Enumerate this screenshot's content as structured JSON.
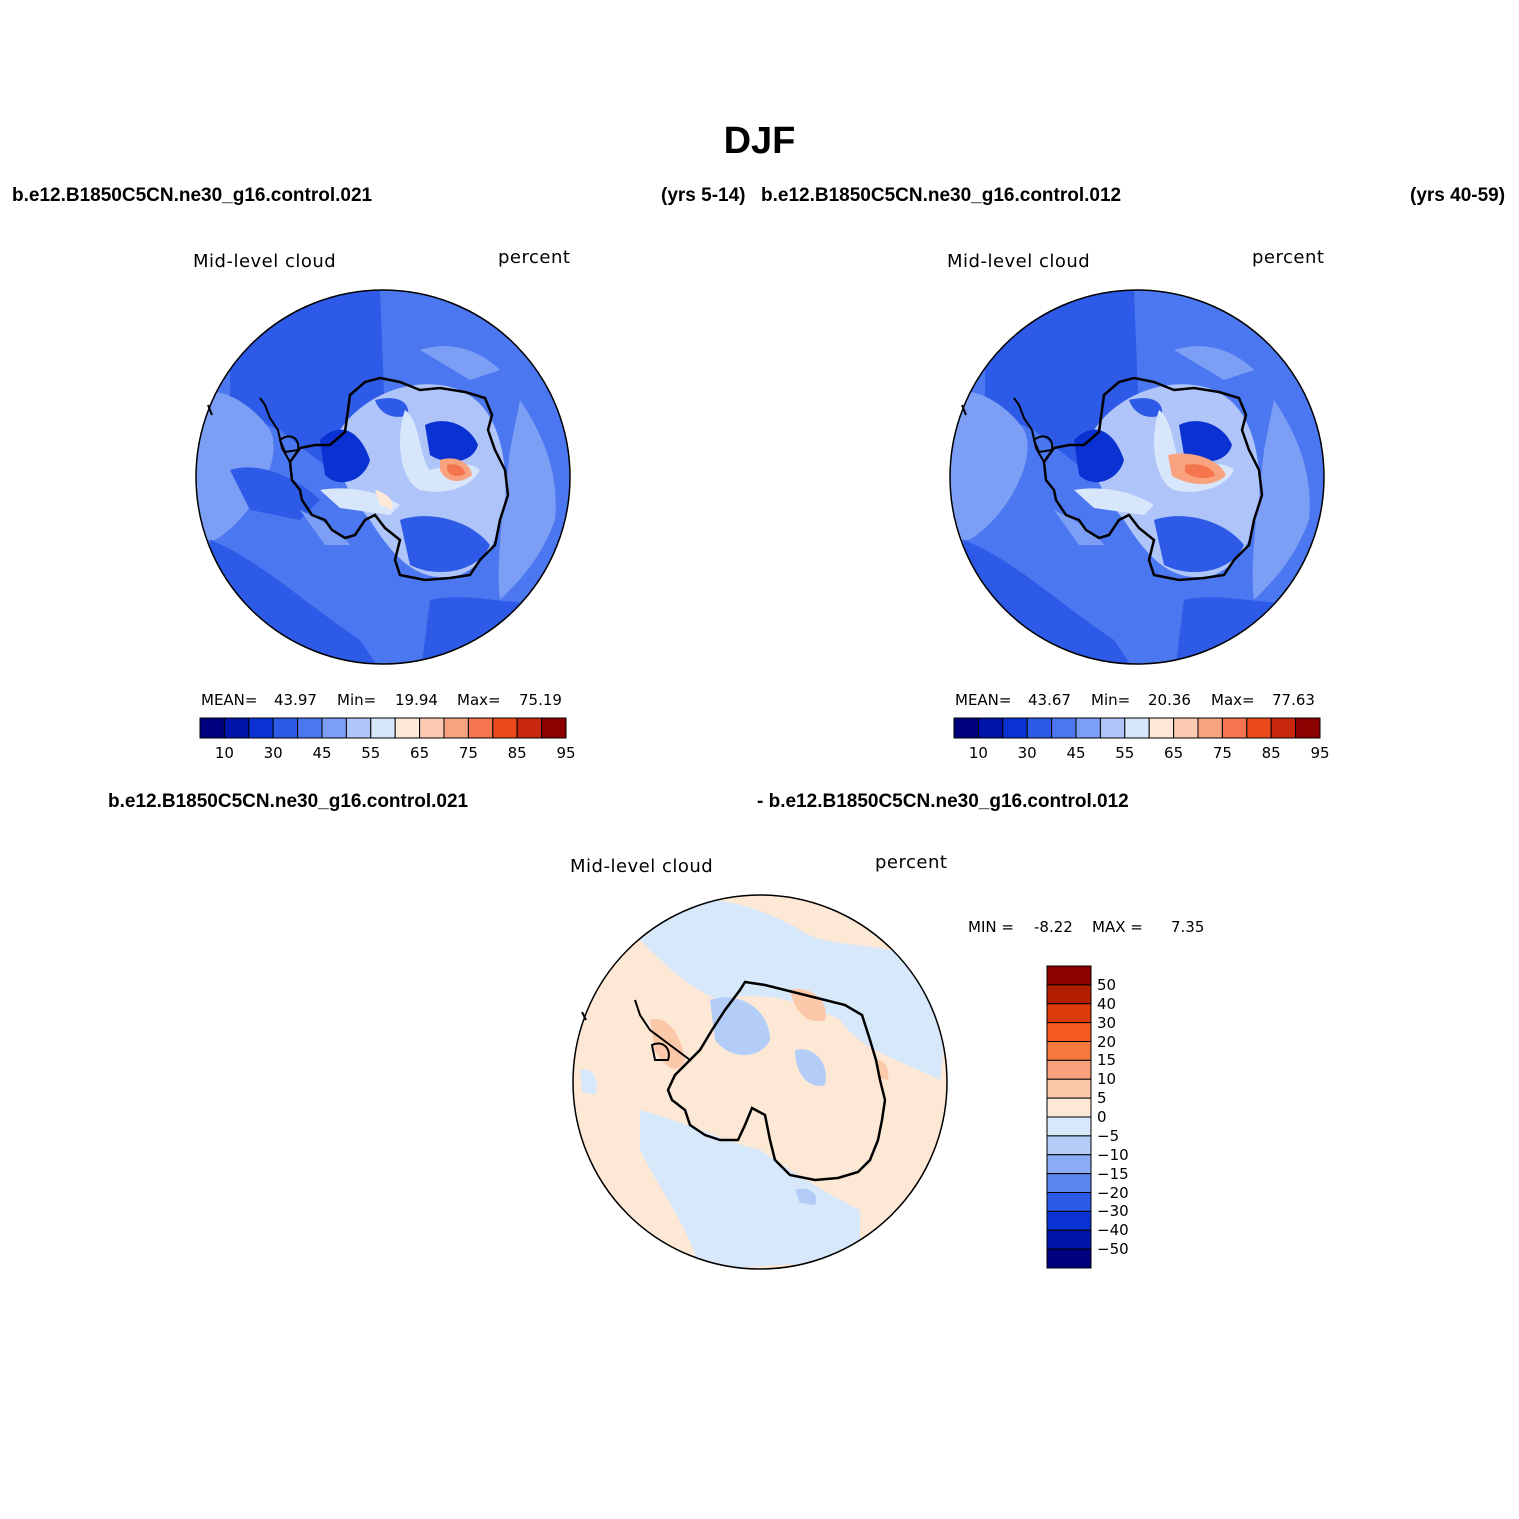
{
  "page": {
    "title": "DJF",
    "case_top_left": "b.e12.B1850C5CN.ne30_g16.control.021",
    "years_top_left": "(yrs 5-14)",
    "case_top_right": "b.e12.B1850C5CN.ne30_g16.control.012",
    "years_top_right": "(yrs 40-59)",
    "case_diff_a": "b.e12.B1850C5CN.ne30_g16.control.021",
    "case_diff_b": "- b.e12.B1850C5CN.ne30_g16.control.012"
  },
  "panels": [
    {
      "variable": "Mid-level cloud",
      "units": "percent",
      "mean_label": "MEAN=",
      "mean": "43.97",
      "min_label": "Min=",
      "min": "19.94",
      "max_label": "Max=",
      "max": "75.19"
    },
    {
      "variable": "Mid-level cloud",
      "units": "percent",
      "mean_label": "MEAN=",
      "mean": "43.67",
      "min_label": "Min=",
      "min": "20.36",
      "max_label": "Max=",
      "max": "77.63"
    },
    {
      "variable": "Mid-level cloud",
      "units": "percent",
      "min_label": "MIN =",
      "min": "-8.22",
      "max_label": "MAX =",
      "max": "7.35"
    }
  ],
  "colorbar_abs": {
    "colors": [
      "#00007f",
      "#0014aa",
      "#0a32d2",
      "#2d5ae6",
      "#4b78f0",
      "#7d9ef5",
      "#afc4f8",
      "#d7e6fb",
      "#fde8d8",
      "#fccab0",
      "#f9a27f",
      "#f5764e",
      "#ea4a1e",
      "#c82810",
      "#8c0000"
    ],
    "tick_labels": [
      "10",
      "30",
      "45",
      "55",
      "65",
      "75",
      "85",
      "95"
    ]
  },
  "colorbar_diff": {
    "colors_top_to_bottom": [
      "#8c0000",
      "#b41e00",
      "#dc3c0a",
      "#f55a1e",
      "#f5783c",
      "#faa07d",
      "#fcc8aa",
      "#fde8d6",
      "#d7e8fb",
      "#b4cdf8",
      "#8cacf5",
      "#5a86f0",
      "#2d5ae6",
      "#0a32d2",
      "#0014aa",
      "#00007f"
    ],
    "tick_labels": [
      "50",
      "40",
      "30",
      "20",
      "15",
      "10",
      "5",
      "0",
      "−5",
      "−10",
      "−15",
      "−20",
      "−30",
      "−40",
      "−50"
    ]
  },
  "map_colors": {
    "ocean_deep": "#2d5ae6",
    "ocean_mid": "#4b78f0",
    "ocean_light": "#7d9ef5",
    "pale_blue": "#afc4f8",
    "very_pale": "#d7e6fb",
    "peach": "#fde8d8",
    "salmon": "#f9a27f",
    "orange": "#f5764e",
    "dark_blue": "#0a32d2",
    "diff_pos": "#fde8d6",
    "diff_neg": "#d7e8fb",
    "diff_pos2": "#fcc8aa",
    "diff_neg2": "#b4cdf8"
  }
}
